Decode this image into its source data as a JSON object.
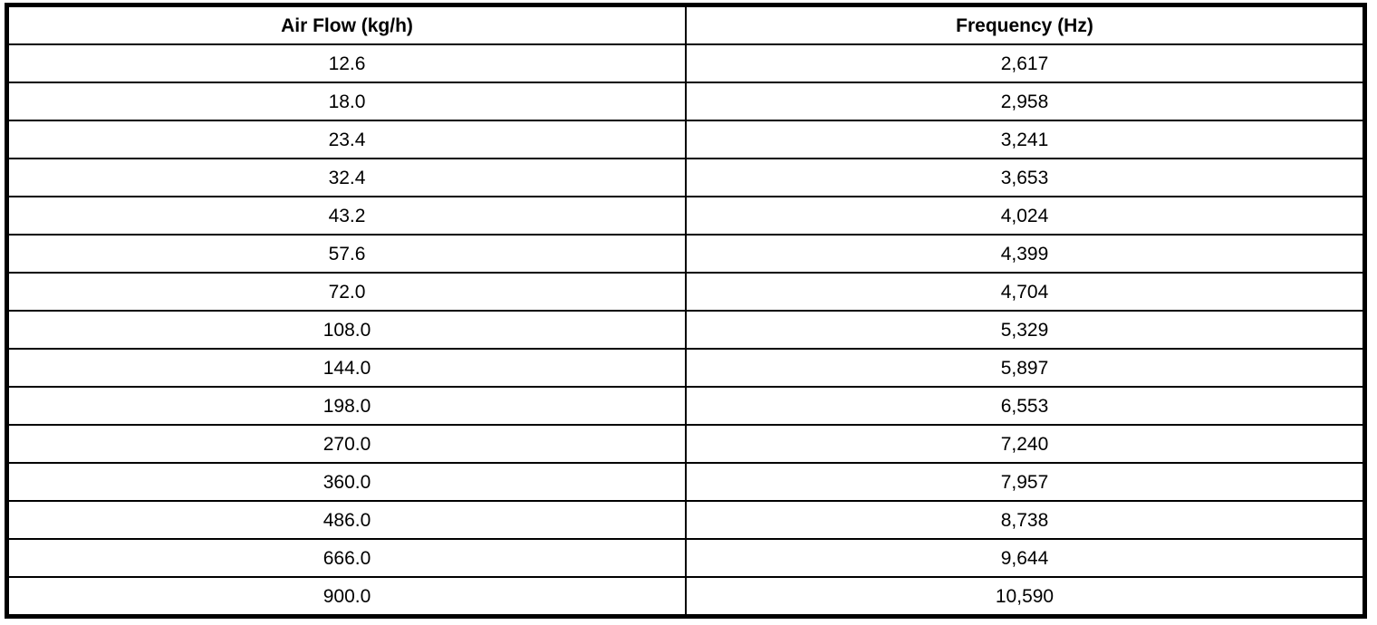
{
  "table": {
    "headers": [
      "Air Flow (kg/h)",
      "Frequency (Hz)"
    ],
    "rows": [
      [
        "12.6",
        "2,617"
      ],
      [
        "18.0",
        "2,958"
      ],
      [
        "23.4",
        "3,241"
      ],
      [
        "32.4",
        "3,653"
      ],
      [
        "43.2",
        "4,024"
      ],
      [
        "57.6",
        "4,399"
      ],
      [
        "72.0",
        "4,704"
      ],
      [
        "108.0",
        "5,329"
      ],
      [
        "144.0",
        "5,897"
      ],
      [
        "198.0",
        "6,553"
      ],
      [
        "270.0",
        "7,240"
      ],
      [
        "360.0",
        "7,957"
      ],
      [
        "486.0",
        "8,738"
      ],
      [
        "666.0",
        "9,644"
      ],
      [
        "900.0",
        "10,590"
      ]
    ]
  },
  "chart_data": {
    "type": "table",
    "title": "",
    "columns": [
      "Air Flow (kg/h)",
      "Frequency (Hz)"
    ],
    "air_flow_kg_h": [
      12.6,
      18.0,
      23.4,
      32.4,
      43.2,
      57.6,
      72.0,
      108.0,
      144.0,
      198.0,
      270.0,
      360.0,
      486.0,
      666.0,
      900.0
    ],
    "frequency_hz": [
      2617,
      2958,
      3241,
      3653,
      4024,
      4399,
      4704,
      5329,
      5897,
      6553,
      7240,
      7957,
      8738,
      9644,
      10590
    ]
  },
  "colors": {
    "border": "#000000",
    "background": "#ffffff",
    "text": "#000000"
  }
}
